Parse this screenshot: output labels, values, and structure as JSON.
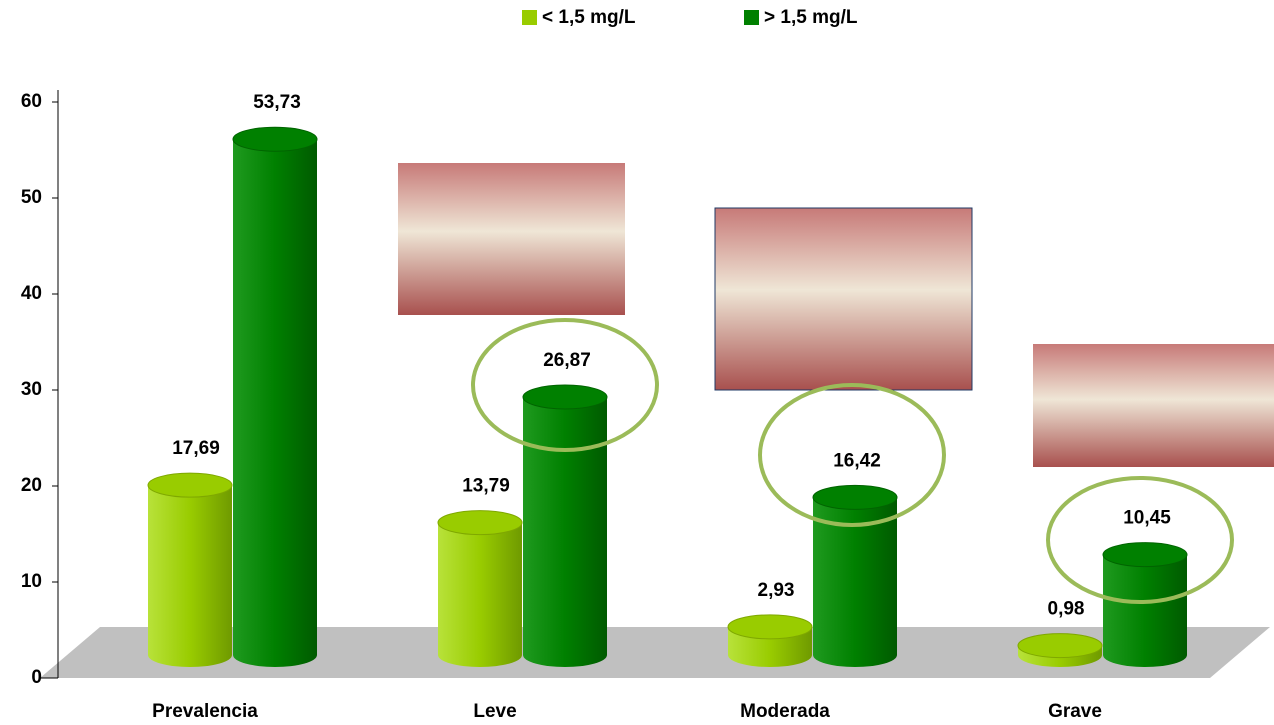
{
  "chart_data": {
    "type": "bar3d",
    "categories": [
      "Prevalencia",
      "Leve",
      "Moderada",
      "Grave"
    ],
    "series": [
      {
        "name": "< 1,5 mg/L",
        "color": "#99cc00",
        "values": [
          17.69,
          13.79,
          2.93,
          0.98
        ],
        "value_labels": [
          "17,69",
          "13,79",
          "2,93",
          "0,98"
        ]
      },
      {
        "name": "> 1,5 mg/L",
        "color": "#008000",
        "values": [
          53.73,
          26.87,
          16.42,
          10.45
        ],
        "value_labels": [
          "53,73",
          "26,87",
          "16,42",
          "10,45"
        ]
      }
    ],
    "ylim": [
      0,
      60
    ],
    "yticks": [
      0,
      10,
      20,
      30,
      40,
      50,
      60
    ]
  }
}
